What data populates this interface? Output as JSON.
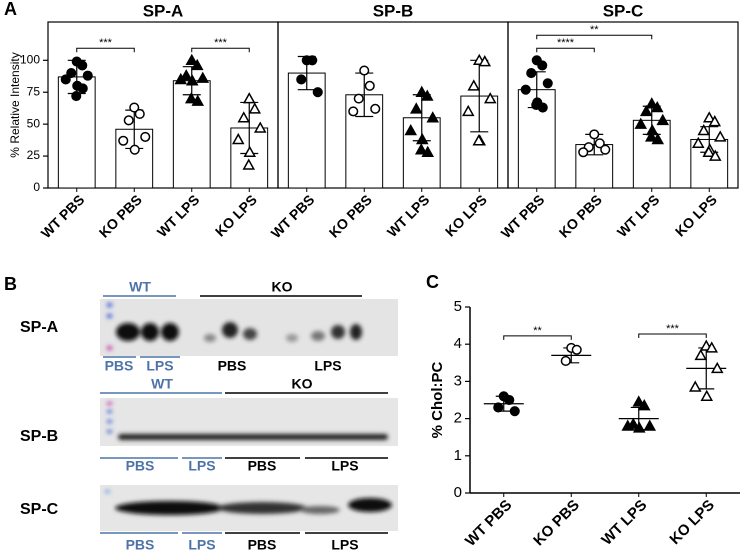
{
  "panel_labels": [
    "A",
    "B",
    "C"
  ],
  "chart_data": [
    {
      "type": "bar",
      "title": "SP-A",
      "ylabel": "% Relative Intensity",
      "categories": [
        "WT PBS",
        "KO PBS",
        "WT LPS",
        "KO LPS"
      ],
      "values": [
        87,
        46,
        84,
        47
      ],
      "error": [
        13,
        15,
        11,
        20
      ],
      "points": [
        [
          99,
          96,
          90,
          88,
          85,
          80,
          72,
          78
        ],
        [
          63,
          58,
          53,
          40,
          37,
          30
        ],
        [
          100,
          96,
          88,
          86,
          85,
          84,
          70,
          68
        ],
        [
          70,
          62,
          55,
          47,
          38,
          28,
          18
        ]
      ],
      "markers": [
        "circle",
        "circle-open",
        "triangle",
        "triangle-open"
      ],
      "significance": [
        {
          "pair": [
            0,
            1
          ],
          "label": "***"
        },
        {
          "pair": [
            2,
            3
          ],
          "label": "***"
        }
      ],
      "color": "#ffffff",
      "ylim": [
        0,
        130
      ],
      "yticks": [
        0,
        25,
        50,
        75,
        100
      ]
    },
    {
      "type": "bar",
      "title": "SP-B",
      "categories": [
        "WT PBS",
        "KO PBS",
        "WT LPS",
        "KO LPS"
      ],
      "values": [
        90,
        73,
        55,
        72
      ],
      "error": [
        13,
        17,
        18,
        28
      ],
      "points": [
        [
          100,
          100,
          85,
          75
        ],
        [
          92,
          80,
          70,
          62,
          60
        ],
        [
          75,
          72,
          62,
          55,
          45,
          38,
          30,
          28
        ],
        [
          100,
          99,
          80,
          70,
          60,
          37,
          37
        ]
      ],
      "markers": [
        "circle",
        "circle-open",
        "triangle",
        "triangle-open"
      ],
      "significance": [],
      "color": "#ffffff",
      "ylim": [
        0,
        130
      ]
    },
    {
      "type": "bar",
      "title": "SP-C",
      "categories": [
        "WT PBS",
        "KO PBS",
        "WT LPS",
        "KO LPS"
      ],
      "values": [
        77,
        34,
        53,
        38
      ],
      "error": [
        14,
        8,
        11,
        10
      ],
      "points": [
        [
          100,
          96,
          90,
          82,
          77,
          67,
          65,
          63
        ],
        [
          42,
          35,
          32,
          30,
          28
        ],
        [
          66,
          63,
          60,
          53,
          50,
          45,
          40,
          38
        ],
        [
          55,
          52,
          45,
          40,
          35,
          30,
          28,
          25
        ]
      ],
      "markers": [
        "circle",
        "circle-open",
        "triangle",
        "triangle-open"
      ],
      "significance": [
        {
          "pair": [
            0,
            1
          ],
          "label": "****"
        },
        {
          "pair": [
            0,
            2
          ],
          "label": "**"
        }
      ],
      "color": "#ffffff",
      "ylim": [
        0,
        130
      ]
    },
    {
      "type": "dot",
      "ylabel": "% Chol:PC",
      "categories": [
        "WT PBS",
        "KO PBS",
        "WT LPS",
        "KO LPS"
      ],
      "values": [
        2.4,
        3.7,
        2.0,
        3.35
      ],
      "error": [
        0.2,
        0.2,
        0.3,
        0.55
      ],
      "points": [
        [
          2.6,
          2.5,
          2.3,
          2.2
        ],
        [
          3.9,
          3.85,
          3.55
        ],
        [
          2.45,
          2.35,
          1.85,
          1.8,
          1.8,
          1.75
        ],
        [
          3.95,
          3.9,
          3.7,
          3.35,
          2.85,
          2.6
        ]
      ],
      "markers": [
        "circle",
        "circle-open",
        "triangle",
        "triangle-open"
      ],
      "significance": [
        {
          "pair": [
            0,
            1
          ],
          "label": "**"
        },
        {
          "pair": [
            2,
            3
          ],
          "label": "***"
        }
      ],
      "ylim": [
        0,
        5
      ],
      "yticks": [
        0,
        1,
        2,
        3,
        4,
        5
      ]
    }
  ],
  "blot": {
    "rows": [
      {
        "label": "SP-A",
        "top": [
          "WT",
          "KO"
        ],
        "bottom": [
          "PBS",
          "LPS",
          "PBS",
          "LPS"
        ]
      },
      {
        "label": "SP-B",
        "top": [
          "WT",
          "KO"
        ],
        "bottom": [
          "PBS",
          "LPS",
          "PBS",
          "LPS"
        ]
      },
      {
        "label": "SP-C",
        "bottom": [
          "PBS",
          "LPS",
          "PBS",
          "LPS"
        ]
      }
    ]
  }
}
